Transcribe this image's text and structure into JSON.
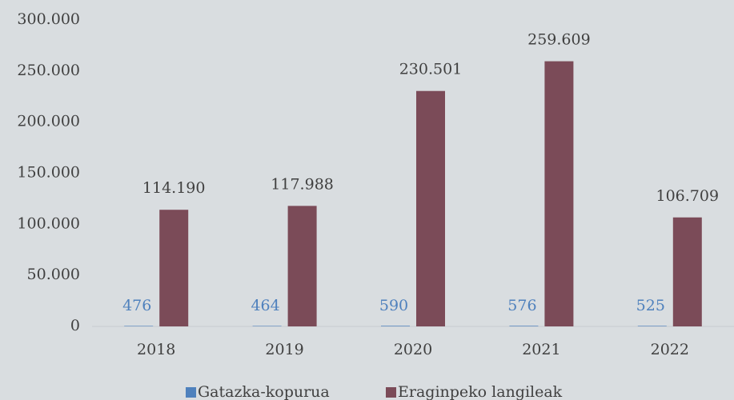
{
  "chart_data": {
    "type": "bar",
    "categories": [
      "2018",
      "2019",
      "2020",
      "2021",
      "2022"
    ],
    "series": [
      {
        "name": "Gatazka-kopurua",
        "color": "#4f81bd",
        "values": [
          476,
          464,
          590,
          576,
          525
        ]
      },
      {
        "name": "Eraginpeko langileak",
        "color": "#7b4b58",
        "values": [
          114190,
          117988,
          230501,
          259609,
          106709
        ],
        "value_labels": [
          "114.190",
          "117.988",
          "230.501",
          "259.609",
          "106.709"
        ]
      }
    ],
    "ylim": [
      0,
      300000
    ],
    "yticks": [
      0,
      {
        "value": 50000,
        "label": "50.000"
      },
      {
        "value": 100000,
        "label": "100.000"
      },
      {
        "value": 150000,
        "label": "150.000"
      },
      {
        "value": 200000,
        "label": "200.000"
      },
      {
        "value": 250000,
        "label": "250.000"
      },
      {
        "value": 300000,
        "label": "300.000"
      }
    ],
    "grid": false,
    "legend": "bottom"
  }
}
